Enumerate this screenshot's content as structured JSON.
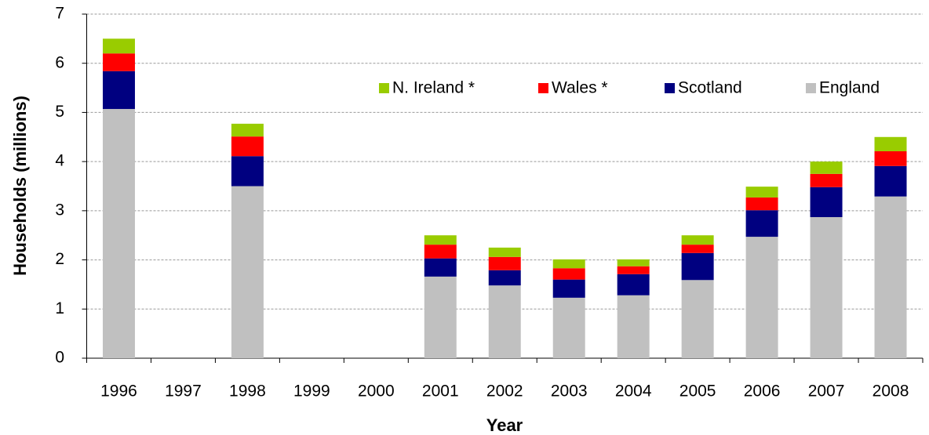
{
  "chart_data": {
    "type": "stacked_bar",
    "x_label": "Year",
    "y_label": "Households (millions)",
    "categories": [
      "1996",
      "1997",
      "1998",
      "1999",
      "2000",
      "2001",
      "2002",
      "2003",
      "2004",
      "2005",
      "2006",
      "2007",
      "2008"
    ],
    "series": [
      {
        "name": "England",
        "color": "#c0c0c0",
        "values": [
          5.07,
          null,
          3.5,
          null,
          null,
          1.66,
          1.48,
          1.23,
          1.28,
          1.59,
          2.47,
          2.87,
          3.29
        ]
      },
      {
        "name": "Scotland",
        "color": "#000080",
        "values": [
          0.77,
          null,
          0.61,
          null,
          null,
          0.37,
          0.31,
          0.37,
          0.43,
          0.55,
          0.54,
          0.61,
          0.62
        ]
      },
      {
        "name": "Wales *",
        "color": "#ff0000",
        "values": [
          0.36,
          null,
          0.4,
          null,
          null,
          0.28,
          0.27,
          0.23,
          0.16,
          0.17,
          0.26,
          0.27,
          0.3
        ]
      },
      {
        "name": "N. Ireland *",
        "color": "#99cc00",
        "values": [
          0.3,
          null,
          0.26,
          null,
          null,
          0.19,
          0.19,
          0.18,
          0.14,
          0.19,
          0.22,
          0.25,
          0.29
        ]
      }
    ],
    "ylim": [
      0,
      7
    ],
    "yticks": [
      0,
      1,
      2,
      3,
      4,
      5,
      6,
      7
    ],
    "grid": true
  }
}
